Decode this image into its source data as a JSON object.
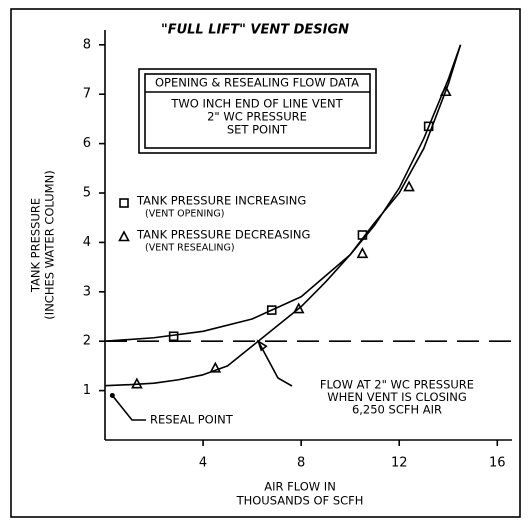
{
  "chart_data": {
    "type": "line",
    "title": "\"FULL LIFT\" VENT DESIGN",
    "box_lines": [
      "OPENING & RESEALING FLOW DATA",
      "TWO INCH END OF LINE VENT",
      "2\" WC PRESSURE",
      "SET POINT"
    ],
    "x_label": [
      "AIR FLOW IN",
      "THOUSANDS OF SCFH"
    ],
    "y_label": [
      "TANK PRESSURE",
      "(INCHES WATER COLUMN)"
    ],
    "xlim": [
      0,
      16.6
    ],
    "ylim": [
      0,
      8.3
    ],
    "xticks": [
      4,
      8,
      12,
      16
    ],
    "yticks": [
      1,
      2,
      3,
      4,
      5,
      6,
      7,
      8
    ],
    "ref_line": 2,
    "series": [
      {
        "name": "TANK PRESSURE INCREASING",
        "sublabel": "(VENT OPENING)",
        "marker": "square",
        "color": "#000000",
        "x": [
          2.8,
          6.8,
          10.5,
          13.2
        ],
        "values": [
          2.1,
          2.63,
          4.15,
          6.35
        ],
        "curve_x": [
          0,
          2,
          4,
          6,
          8,
          10,
          11,
          12,
          13,
          14,
          14.5
        ],
        "curve_y": [
          2,
          2.07,
          2.2,
          2.45,
          2.9,
          3.75,
          4.35,
          5.1,
          6.1,
          7.3,
          8
        ]
      },
      {
        "name": "TANK PRESSURE DECREASING",
        "sublabel": "(VENT RESEALING)",
        "marker": "triangle",
        "color": "#000000",
        "x": [
          1.3,
          4.5,
          7.9,
          10.5,
          12.4,
          13.9
        ],
        "values": [
          1.13,
          1.45,
          2.65,
          3.77,
          5.12,
          7.05
        ],
        "curve_x": [
          0,
          1,
          2,
          3,
          4,
          5,
          6,
          7,
          8,
          9,
          10,
          11,
          12,
          13,
          14,
          14.5
        ],
        "curve_y": [
          1.1,
          1.12,
          1.15,
          1.22,
          1.32,
          1.5,
          1.9,
          2.3,
          2.7,
          3.2,
          3.75,
          4.4,
          5.0,
          5.9,
          7.2,
          8
        ]
      }
    ],
    "annotations": [
      {
        "lines": [
          "FLOW AT 2\" WC PRESSURE",
          "WHEN VENT IS CLOSING",
          "6,250 SCFH AIR"
        ],
        "x": 6.25,
        "y": 2
      },
      {
        "lines": [
          "RESEAL POINT"
        ],
        "x": 0.3,
        "y": 0.9
      }
    ]
  }
}
